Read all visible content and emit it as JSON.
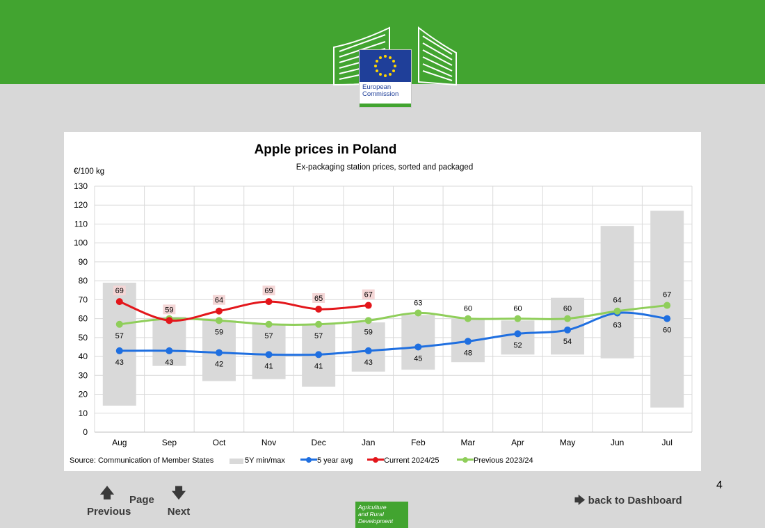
{
  "branding": {
    "ec_line1": "European",
    "ec_line2": "Commission",
    "dg_line1": "Agriculture",
    "dg_line2": "and Rural",
    "dg_line3": "Development"
  },
  "navigation": {
    "previous_label": "Previous",
    "page_label": "Page",
    "next_label": "Next",
    "dashboard_label": "back to Dashboard",
    "page_number": "4"
  },
  "colors": {
    "brand_green": "#42a430",
    "eu_blue": "#1f3f99",
    "current_red": "#e3161b",
    "previous_green": "#8fce5a",
    "avg_blue": "#1f6fe0",
    "minmax_grey": "#d9d9d9"
  },
  "chart_data": {
    "type": "line",
    "title": "Apple prices in Poland",
    "subtitle": "Ex-packaging station prices, sorted and packaged",
    "ylabel": "€/100 kg",
    "xlabel": "",
    "ylim": [
      0,
      130
    ],
    "yticks": [
      0,
      10,
      20,
      30,
      40,
      50,
      60,
      70,
      80,
      90,
      100,
      110,
      120,
      130
    ],
    "grid": true,
    "legend_position": "bottom",
    "source": "Source: Communication of Member States",
    "categories": [
      "Aug",
      "Sep",
      "Oct",
      "Nov",
      "Dec",
      "Jan",
      "Feb",
      "Mar",
      "Apr",
      "May",
      "Jun",
      "Jul"
    ],
    "range_series": {
      "name": "5Y min/max",
      "min": [
        14,
        35,
        27,
        28,
        24,
        32,
        33,
        37,
        41,
        41,
        39,
        13
      ],
      "max": [
        79,
        61,
        59,
        57,
        57,
        58,
        62,
        60,
        59,
        71,
        109,
        117
      ]
    },
    "series": [
      {
        "name": "5 year avg",
        "values": [
          43,
          43,
          42,
          41,
          41,
          43,
          45,
          48,
          52,
          54,
          63,
          60
        ],
        "labels": [
          "43",
          "43",
          "42",
          "41",
          "41",
          "43",
          "45",
          "48",
          "52",
          "54",
          "63",
          "60"
        ]
      },
      {
        "name": "Current 2024/25",
        "values": [
          69,
          59,
          64,
          69,
          65,
          67,
          null,
          null,
          null,
          null,
          null,
          null
        ],
        "labels": [
          "69",
          "59",
          "64",
          "69",
          "65",
          "67"
        ]
      },
      {
        "name": "Previous 2023/24",
        "values": [
          57,
          60,
          59,
          57,
          57,
          59,
          63,
          60,
          60,
          60,
          64,
          67
        ],
        "labels": [
          "57",
          "",
          "59",
          "57",
          "57",
          "59",
          "63",
          "60",
          "60",
          "60",
          "64",
          "67"
        ]
      }
    ]
  }
}
